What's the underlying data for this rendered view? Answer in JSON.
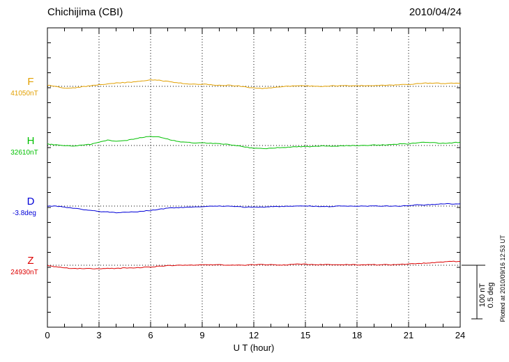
{
  "chart_data": {
    "type": "line",
    "title": "Chichijima (CBI)",
    "date": "2010/04/24",
    "xlabel": "U T (hour)",
    "xlim": [
      0,
      24
    ],
    "x_ticks": [
      0,
      3,
      6,
      9,
      12,
      15,
      18,
      21,
      24
    ],
    "x_step_hours": 0.5,
    "grid": "dotted vertical gridlines every 3 hours; dotted horizontal baseline per trace",
    "legend_position": "left margin, one colored label per trace",
    "series": [
      {
        "name": "F",
        "base_label": "41050nT",
        "unit": "nT",
        "color": "#e2a000",
        "offsets": [
          2,
          0,
          -3,
          -3,
          -1,
          1,
          3,
          4,
          6,
          7,
          8,
          10,
          12,
          11,
          9,
          7,
          5,
          4,
          4,
          3,
          2,
          2,
          1,
          -1,
          -3,
          -4,
          -3,
          -1,
          0,
          1,
          1,
          0,
          0,
          1,
          1,
          1,
          1,
          1,
          1,
          2,
          2,
          3,
          3,
          5,
          6,
          6,
          5,
          6,
          6
        ]
      },
      {
        "name": "H",
        "base_label": "32610nT",
        "unit": "nT",
        "color": "#00c000",
        "offsets": [
          3,
          1,
          0,
          -1,
          1,
          2,
          6,
          10,
          8,
          9,
          12,
          15,
          17,
          16,
          12,
          8,
          6,
          5,
          5,
          4,
          3,
          2,
          0,
          -3,
          -5,
          -6,
          -5,
          -4,
          -3,
          -2,
          -2,
          -2,
          -1,
          -1,
          -1,
          0,
          0,
          0,
          1,
          1,
          2,
          3,
          3,
          5,
          6,
          5,
          4,
          5,
          6
        ]
      },
      {
        "name": "D",
        "base_label": "-3.8deg",
        "unit": "deg",
        "color": "#0000d8",
        "offsets": [
          0,
          0,
          -0.01,
          -0.02,
          -0.03,
          -0.04,
          -0.05,
          -0.055,
          -0.06,
          -0.06,
          -0.055,
          -0.05,
          -0.04,
          -0.03,
          -0.02,
          -0.015,
          -0.01,
          -0.01,
          -0.005,
          0,
          0,
          0,
          -0.005,
          -0.01,
          -0.01,
          -0.01,
          -0.005,
          -0.005,
          0,
          0,
          0,
          0,
          -0.005,
          -0.005,
          0,
          0,
          0,
          0,
          0,
          0,
          0,
          0,
          0.005,
          0.01,
          0.01,
          0.015,
          0.02,
          0.02,
          0.02
        ]
      },
      {
        "name": "Z",
        "base_label": "24930nT",
        "unit": "nT",
        "color": "#dd0000",
        "offsets": [
          0,
          -3,
          -5,
          -6,
          -6,
          -6,
          -7,
          -6,
          -6,
          -5,
          -5,
          -4,
          -3,
          -2,
          -1,
          0,
          0,
          0,
          1,
          1,
          1,
          0,
          0,
          0,
          1,
          1,
          1,
          0,
          1,
          2,
          2,
          1,
          1,
          1,
          1,
          1,
          1,
          1,
          1,
          1,
          1,
          2,
          2,
          3,
          4,
          5,
          6,
          7,
          7
        ]
      }
    ],
    "scale_bar": {
      "labels": [
        "100 nT",
        "0.5 deg"
      ],
      "nT_per_bar": 100,
      "deg_per_bar": 0.5
    },
    "footnote": "Plotted at 2010/09/16 12:53 UT"
  }
}
